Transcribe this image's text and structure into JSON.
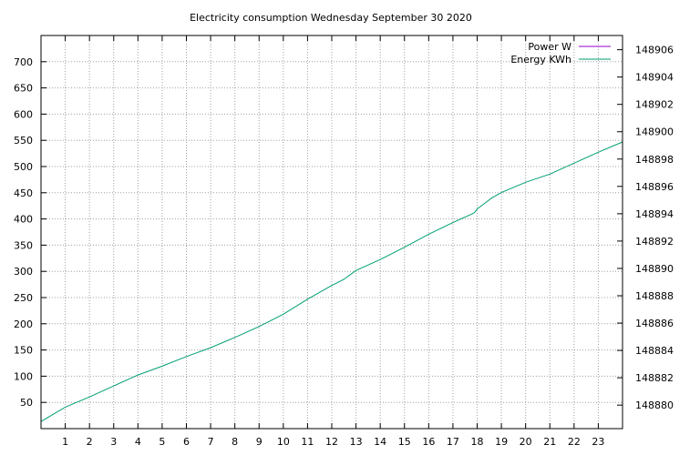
{
  "chart_data": {
    "type": "line",
    "title": "Electricity consumption Wednesday September 30 2020",
    "xlabel": "",
    "ylabel": "",
    "y2label": "",
    "x_ticks": [
      1,
      2,
      3,
      4,
      5,
      6,
      7,
      8,
      9,
      10,
      11,
      12,
      13,
      14,
      15,
      16,
      17,
      18,
      19,
      20,
      21,
      22,
      23
    ],
    "x_range": [
      0,
      24
    ],
    "y_ticks": [
      50,
      100,
      150,
      200,
      250,
      300,
      350,
      400,
      450,
      500,
      550,
      600,
      650,
      700
    ],
    "y_range": [
      0,
      750
    ],
    "y2_ticks": [
      148880,
      148882,
      148884,
      148886,
      148888,
      148890,
      148892,
      148894,
      148896,
      148898,
      148900,
      148902,
      148904,
      148906
    ],
    "y2_range": [
      148878.28,
      148907.04
    ],
    "grid": true,
    "legend_position": "top-right",
    "colors": {
      "power": "#9400d3",
      "energy": "#009e73",
      "grid": "#a0a0a0",
      "axes": "#000000"
    },
    "series": [
      {
        "name": "Power W",
        "axis": "y",
        "x": [],
        "values": []
      },
      {
        "name": "Energy KWh",
        "axis": "y2",
        "x": [
          0,
          1,
          2,
          3,
          4,
          5,
          6,
          7,
          8,
          9,
          10,
          11,
          12,
          12.5,
          13,
          14,
          15,
          16,
          17,
          17.8,
          17.9,
          18,
          18.3,
          18.6,
          19,
          20,
          21,
          22,
          23,
          24
        ],
        "values": [
          148878.8,
          148879.85,
          148880.6,
          148881.4,
          148882.2,
          148882.85,
          148883.55,
          148884.2,
          148884.95,
          148885.75,
          148886.65,
          148887.75,
          148888.75,
          148889.2,
          148889.85,
          148890.65,
          148891.55,
          148892.5,
          148893.35,
          148894.0,
          148894.1,
          148894.35,
          148894.75,
          148895.15,
          148895.55,
          148896.3,
          148896.9,
          148897.7,
          148898.5,
          148899.25
        ]
      }
    ]
  }
}
